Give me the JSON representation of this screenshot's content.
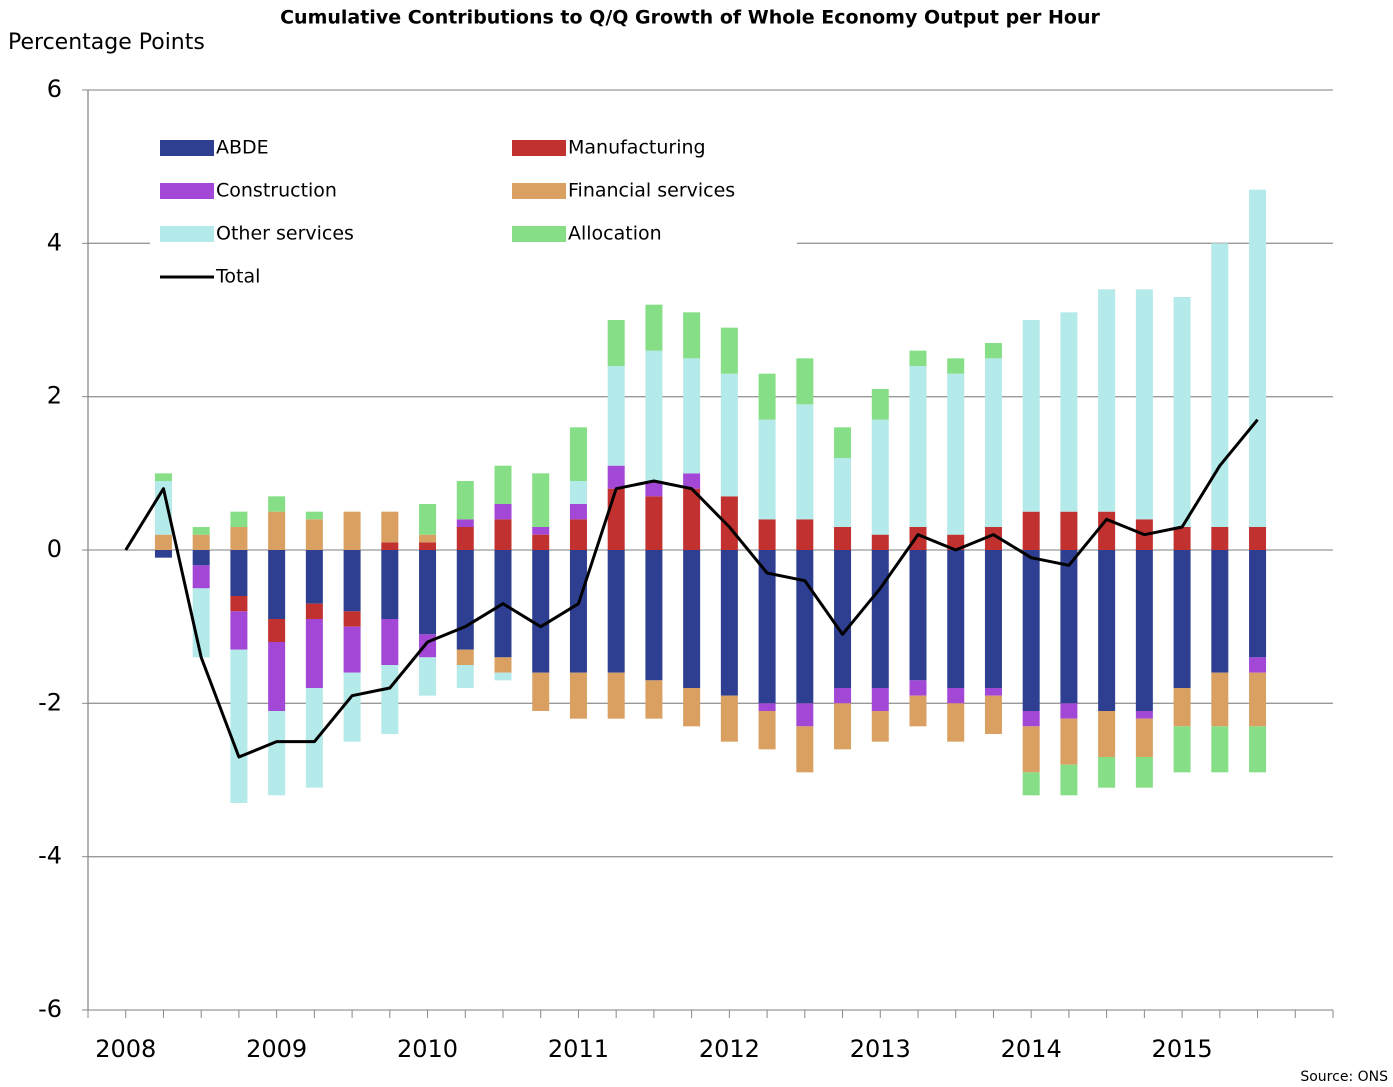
{
  "chart_data": {
    "type": "bar",
    "stacked": true,
    "title": "Cumulative Contributions to Q/Q Growth of Whole Economy Output per Hour",
    "y_label": "Percentage Points",
    "source": "Source: ONS",
    "categories": [
      "2008",
      null,
      null,
      null,
      "2009",
      null,
      null,
      null,
      "2010",
      null,
      null,
      null,
      "2011",
      null,
      null,
      null,
      "2012",
      null,
      null,
      null,
      "2013",
      null,
      null,
      null,
      "2014",
      null,
      null,
      null,
      "2015",
      null,
      null
    ],
    "ylim": [
      -6,
      6
    ],
    "yticks": [
      -6,
      -4,
      -2,
      0,
      2,
      4,
      6
    ],
    "grid": true,
    "legend": "top-left",
    "series": [
      {
        "name": "ABDE",
        "color": "#2e3f92",
        "values": [
          0,
          -0.1,
          -0.2,
          -0.6,
          -0.9,
          -0.7,
          -0.8,
          -0.9,
          -1.1,
          -1.3,
          -1.4,
          -1.6,
          -1.6,
          -1.6,
          -1.7,
          -1.8,
          -1.9,
          -2.0,
          -2.0,
          -1.8,
          -1.8,
          -1.7,
          -1.8,
          -1.8,
          -2.1,
          -2.0,
          -2.1,
          -2.1,
          -1.8,
          -1.6,
          -1.4
        ]
      },
      {
        "name": "Manufacturing",
        "color": "#c0312f",
        "values": [
          0,
          0,
          0,
          -0.2,
          -0.3,
          -0.2,
          -0.2,
          0.1,
          0.1,
          0.3,
          0.4,
          0.2,
          0.4,
          0.8,
          0.7,
          0.8,
          0.7,
          0.4,
          0.4,
          0.3,
          0.2,
          0.3,
          0.2,
          0.3,
          0.5,
          0.5,
          0.5,
          0.4,
          0.3,
          0.3,
          0.3
        ]
      },
      {
        "name": "Construction",
        "color": "#a347d6",
        "values": [
          0,
          0,
          -0.3,
          -0.5,
          -0.9,
          -0.9,
          -0.6,
          -0.6,
          -0.3,
          0.1,
          0.2,
          0.1,
          0.2,
          0.3,
          0.2,
          0.2,
          0,
          -0.1,
          -0.3,
          -0.2,
          -0.3,
          -0.2,
          -0.2,
          -0.1,
          -0.2,
          -0.2,
          0,
          -0.1,
          0,
          0,
          -0.2
        ]
      },
      {
        "name": "Financial services",
        "color": "#d9a062",
        "values": [
          0,
          0.2,
          0.2,
          0.3,
          0.5,
          0.4,
          0.5,
          0.4,
          0.1,
          -0.2,
          -0.2,
          -0.5,
          -0.6,
          -0.6,
          -0.5,
          -0.5,
          -0.6,
          -0.5,
          -0.6,
          -0.6,
          -0.4,
          -0.4,
          -0.5,
          -0.5,
          -0.6,
          -0.6,
          -0.6,
          -0.5,
          -0.5,
          -0.7,
          -0.7
        ]
      },
      {
        "name": "Other services",
        "color": "#b4eaea",
        "values": [
          0,
          0.7,
          -0.9,
          -2.0,
          -1.1,
          -1.3,
          -0.9,
          -0.9,
          -0.5,
          -0.3,
          -0.1,
          0,
          0.3,
          1.3,
          1.7,
          1.5,
          1.6,
          1.3,
          1.5,
          0.9,
          1.5,
          2.1,
          2.1,
          2.2,
          2.5,
          2.6,
          2.9,
          3.0,
          3.0,
          3.7,
          4.4
        ]
      },
      {
        "name": "Allocation",
        "color": "#86df86",
        "values": [
          0,
          0.1,
          0.1,
          0.2,
          0.2,
          0.1,
          0,
          0,
          0.4,
          0.5,
          0.5,
          0.7,
          0.7,
          0.6,
          0.6,
          0.6,
          0.6,
          0.6,
          0.6,
          0.4,
          0.4,
          0.2,
          0.2,
          0.2,
          -0.3,
          -0.4,
          -0.4,
          -0.4,
          -0.6,
          -0.6,
          -0.6
        ]
      },
      {
        "name": "Total",
        "color": "#000000",
        "type": "line",
        "values": [
          0,
          0.8,
          -1.4,
          -2.7,
          -2.5,
          -2.5,
          -1.9,
          -1.8,
          -1.2,
          -1.0,
          -0.7,
          -1.0,
          -0.7,
          0.8,
          0.9,
          0.8,
          0.3,
          -0.3,
          -0.4,
          -1.1,
          -0.5,
          0.2,
          0.0,
          0.2,
          -0.1,
          -0.2,
          0.4,
          0.2,
          0.3,
          1.1,
          1.7
        ]
      }
    ]
  }
}
